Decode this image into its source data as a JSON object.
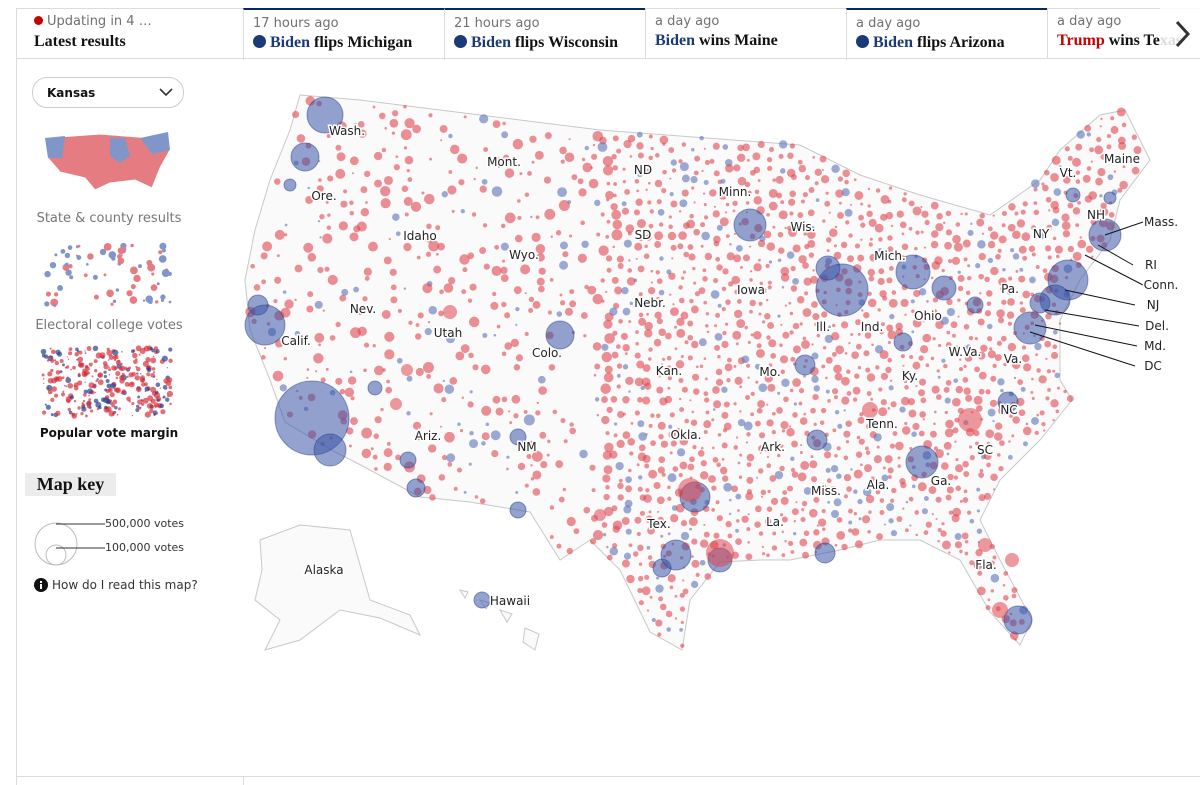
{
  "header": {
    "status": "Updating in 4 …",
    "title": "Latest results",
    "items": [
      {
        "time": "17 hours ago",
        "candidate": "Biden",
        "text": "flips Michigan"
      },
      {
        "time": "21 hours ago",
        "candidate": "Biden",
        "text": "flips Wisconsin"
      },
      {
        "time": "a day ago",
        "candidate": "Biden",
        "text": "wins Maine"
      },
      {
        "time": "a day ago",
        "candidate": "Biden",
        "text": "flips Arizona"
      },
      {
        "time": "a day ago",
        "candidate": "Trump",
        "text": "wins Texas"
      }
    ]
  },
  "sidebar": {
    "dropdown": "Kansas",
    "views": [
      "State & county results",
      "Electoral college votes",
      "Popular vote margin"
    ],
    "key_title": "Map key",
    "key_labels": [
      "500,000 votes",
      "100,000 votes"
    ],
    "help": "How do I read this map?"
  },
  "map": {
    "labels": [
      "Wash.",
      "Ore.",
      "Calif.",
      "Nev.",
      "Idaho",
      "Mont.",
      "Wyo.",
      "Utah",
      "Ariz.",
      "Colo.",
      "NM",
      "ND",
      "SD",
      "Nebr.",
      "Kan.",
      "Okla.",
      "Tex.",
      "Minn.",
      "Iowa",
      "Mo.",
      "Ark.",
      "La.",
      "Wis.",
      "Ill.",
      "Mich.",
      "Ind.",
      "Ohio",
      "Ky.",
      "Tenn.",
      "Miss.",
      "Ala.",
      "Ga.",
      "Fla.",
      "SC",
      "NC",
      "Va.",
      "W.Va.",
      "Pa.",
      "NY",
      "Vt.",
      "NH",
      "Maine",
      "Mass.",
      "RI",
      "Conn.",
      "NJ",
      "Del.",
      "Md.",
      "DC",
      "Alaska",
      "Hawaii"
    ]
  }
}
